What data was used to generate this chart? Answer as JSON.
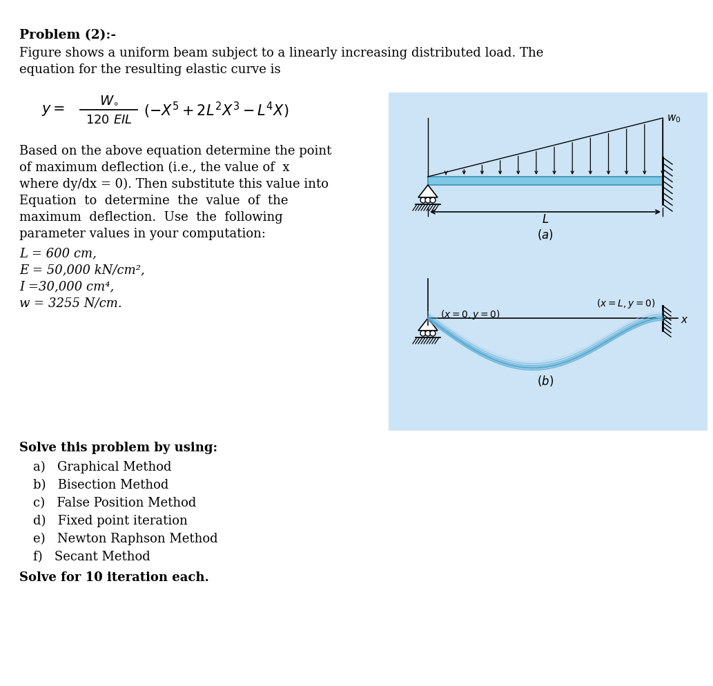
{
  "bg_color": "#ffffff",
  "panel_bg_color": "#cce4f5",
  "title": "Problem (2):-",
  "intro_line1": "Figure shows a uniform beam subject to a linearly increasing distributed load. The",
  "intro_line2": "equation for the resulting elastic curve is",
  "body_lines": [
    "Based on the above equation determine the point",
    "of maximum deflection (i.e., the value of  x",
    "where dy/dx = 0). Then substitute this value into",
    "Equation  to  determine  the  value  of  the",
    "maximum  deflection.  Use  the  following",
    "parameter values in your computation:"
  ],
  "param_lines": [
    "L = 600 cm,",
    "E = 50,000 kN/cm²,",
    "I =30,000 cm⁴,",
    "w = 3255 N/cm."
  ],
  "solve_header": "Solve this problem by using:",
  "solve_items": [
    "a)   Graphical Method",
    "b)   Bisection Method",
    "c)   False Position Method",
    "d)   Fixed point iteration",
    "e)   Newton Raphson Method",
    "f)   Secant Method"
  ],
  "solve_footer": "Solve for 10 iteration each.",
  "beam_color": "#7ec8e3",
  "beam_edge_color": "#3a8fb5",
  "elastic_curve_color": "#5bacd4",
  "elastic_curve_color2": "#a8d4ec"
}
